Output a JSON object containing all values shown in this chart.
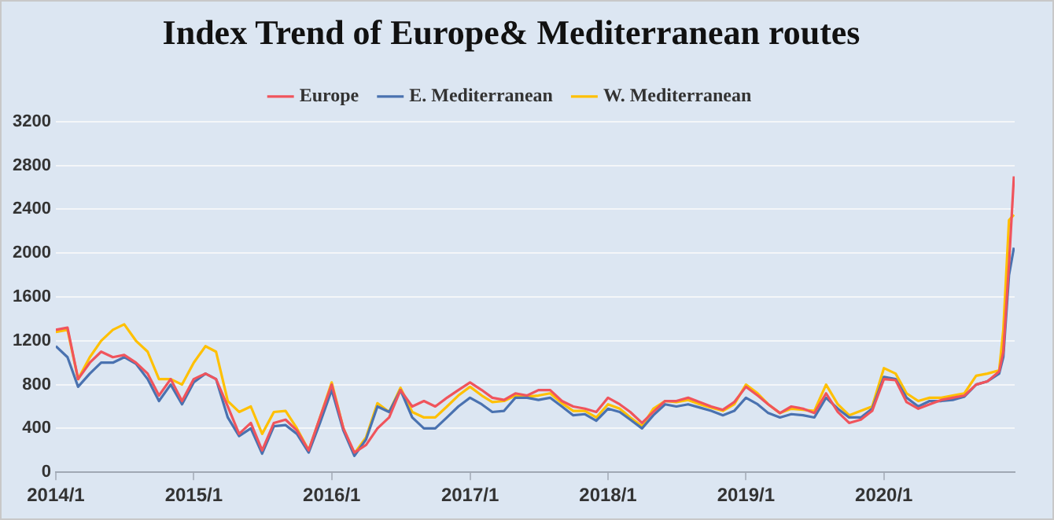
{
  "chart_data": {
    "type": "line",
    "title": "Index Trend of Europe& Mediterranean routes",
    "x": [
      "2014-01",
      "2014-02",
      "2014-03",
      "2014-04",
      "2014-05",
      "2014-06",
      "2014-07",
      "2014-08",
      "2014-09",
      "2014-10",
      "2014-11",
      "2014-12",
      "2015-01",
      "2015-02",
      "2015-03",
      "2015-04",
      "2015-05",
      "2015-06",
      "2015-07",
      "2015-08",
      "2015-09",
      "2015-10",
      "2015-11",
      "2015-12",
      "2016-01",
      "2016-02",
      "2016-03",
      "2016-04",
      "2016-05",
      "2016-06",
      "2016-07",
      "2016-08",
      "2016-09",
      "2016-10",
      "2016-11",
      "2016-12",
      "2017-01",
      "2017-02",
      "2017-03",
      "2017-04",
      "2017-05",
      "2017-06",
      "2017-07",
      "2017-08",
      "2017-09",
      "2017-10",
      "2017-11",
      "2017-12",
      "2018-01",
      "2018-02",
      "2018-03",
      "2018-04",
      "2018-05",
      "2018-06",
      "2018-07",
      "2018-08",
      "2018-09",
      "2018-10",
      "2018-11",
      "2018-12",
      "2019-01",
      "2019-02",
      "2019-03",
      "2019-04",
      "2019-05",
      "2019-06",
      "2019-07",
      "2019-08",
      "2019-09",
      "2019-10",
      "2019-11",
      "2019-12",
      "2020-01",
      "2020-02",
      "2020-03",
      "2020-04",
      "2020-05",
      "2020-06",
      "2020-07",
      "2020-08",
      "2020-09",
      "2020-10",
      "2020-11",
      "2020-11-12",
      "2020-11-27",
      "2020-12-10"
    ],
    "series": [
      {
        "name": "Europe",
        "color": "#f0545c",
        "values": [
          1300,
          1320,
          850,
          1000,
          1100,
          1050,
          1070,
          1000,
          900,
          700,
          850,
          650,
          850,
          900,
          850,
          600,
          350,
          450,
          200,
          450,
          480,
          380,
          200,
          500,
          800,
          400,
          180,
          250,
          400,
          500,
          750,
          600,
          650,
          600,
          680,
          750,
          820,
          750,
          680,
          660,
          720,
          700,
          750,
          750,
          650,
          600,
          580,
          550,
          680,
          620,
          550,
          450,
          550,
          650,
          650,
          680,
          640,
          600,
          570,
          640,
          780,
          700,
          620,
          540,
          600,
          580,
          540,
          720,
          550,
          450,
          480,
          560,
          850,
          840,
          640,
          580,
          620,
          660,
          680,
          700,
          800,
          830,
          920,
          1100,
          1900,
          2700
        ]
      },
      {
        "name": "E. Mediterranean",
        "color": "#4a72b0",
        "values": [
          1150,
          1050,
          780,
          900,
          1000,
          1000,
          1050,
          990,
          850,
          650,
          800,
          620,
          820,
          900,
          850,
          500,
          330,
          400,
          170,
          420,
          430,
          350,
          180,
          450,
          750,
          380,
          150,
          300,
          600,
          550,
          750,
          500,
          400,
          400,
          500,
          600,
          680,
          620,
          550,
          560,
          680,
          680,
          660,
          680,
          600,
          520,
          530,
          470,
          580,
          550,
          480,
          400,
          520,
          620,
          600,
          620,
          590,
          560,
          520,
          560,
          680,
          620,
          540,
          500,
          530,
          520,
          500,
          680,
          580,
          500,
          500,
          580,
          870,
          850,
          680,
          600,
          650,
          650,
          660,
          690,
          800,
          830,
          900,
          1050,
          1800,
          2050
        ]
      },
      {
        "name": "W. Mediterranean",
        "color": "#ffc000",
        "values": [
          1280,
          1300,
          850,
          1050,
          1200,
          1300,
          1350,
          1200,
          1100,
          850,
          850,
          800,
          1000,
          1150,
          1100,
          650,
          550,
          600,
          350,
          550,
          560,
          400,
          200,
          500,
          820,
          400,
          170,
          320,
          630,
          550,
          770,
          550,
          500,
          500,
          600,
          700,
          780,
          700,
          640,
          650,
          700,
          690,
          700,
          720,
          630,
          560,
          560,
          500,
          620,
          580,
          500,
          420,
          580,
          650,
          640,
          660,
          620,
          590,
          560,
          620,
          800,
          720,
          620,
          540,
          580,
          570,
          560,
          800,
          620,
          520,
          560,
          600,
          950,
          900,
          720,
          650,
          680,
          680,
          700,
          720,
          880,
          900,
          930,
          1300,
          2300,
          2350
        ]
      }
    ],
    "xlim": [
      "2014-01-01",
      "2020-12-12"
    ],
    "xticks": [
      {
        "value": "2014-01",
        "label": "2014/1"
      },
      {
        "value": "2015-01",
        "label": "2015/1"
      },
      {
        "value": "2016-01",
        "label": "2016/1"
      },
      {
        "value": "2017-01",
        "label": "2017/1"
      },
      {
        "value": "2018-01",
        "label": "2018/1"
      },
      {
        "value": "2019-01",
        "label": "2019/1"
      },
      {
        "value": "2020-01",
        "label": "2020/1"
      }
    ],
    "ylim": [
      0,
      3200
    ],
    "yticks": [
      0,
      400,
      800,
      1200,
      1600,
      2000,
      2400,
      2800,
      3200
    ],
    "grid": "y",
    "legend": "top",
    "marker": "none",
    "line_style": "solid"
  }
}
